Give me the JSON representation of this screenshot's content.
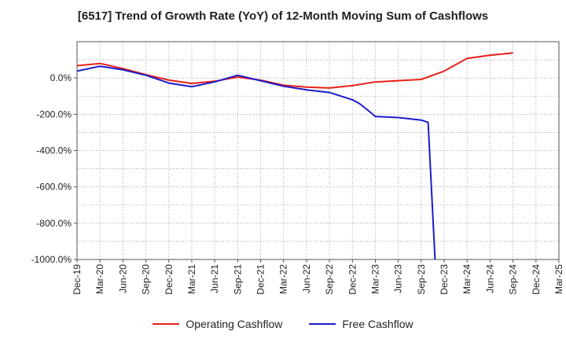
{
  "chart_data": {
    "type": "line",
    "title": "[6517]  Trend of Growth Rate (YoY) of 12-Month Moving Sum of Cashflows",
    "xlabel": "",
    "ylabel": "",
    "categories": [
      "Dec-19",
      "Mar-20",
      "Jun-20",
      "Sep-20",
      "Dec-20",
      "Mar-21",
      "Jun-21",
      "Sep-21",
      "Dec-21",
      "Mar-22",
      "Jun-22",
      "Sep-22",
      "Dec-22",
      "Mar-23",
      "Jun-23",
      "Sep-23",
      "Dec-23",
      "Mar-24",
      "Jun-24",
      "Sep-24",
      "Dec-24",
      "Mar-25"
    ],
    "yticks": [
      "-1000.0%",
      "-800.0%",
      "-600.0%",
      "-400.0%",
      "-200.0%",
      "0.0%"
    ],
    "ylim": [
      -1000,
      200
    ],
    "grid": true,
    "legend_position": "bottom",
    "series": [
      {
        "name": "Operating Cashflow",
        "color": "#e8201a",
        "points": [
          [
            0,
            68
          ],
          [
            1,
            80
          ],
          [
            2,
            52
          ],
          [
            3,
            18
          ],
          [
            4,
            -12
          ],
          [
            5,
            -30
          ],
          [
            6,
            -18
          ],
          [
            7,
            5
          ],
          [
            8,
            -12
          ],
          [
            9,
            -40
          ],
          [
            10,
            -50
          ],
          [
            11,
            -55
          ],
          [
            12,
            -42
          ],
          [
            13,
            -22
          ],
          [
            14,
            -15
          ],
          [
            15,
            -8
          ],
          [
            16,
            38
          ],
          [
            17,
            108
          ],
          [
            18,
            125
          ],
          [
            19,
            138
          ]
        ]
      },
      {
        "name": "Free Cashflow",
        "color": "#1b1bcc",
        "points": [
          [
            0,
            38
          ],
          [
            1,
            65
          ],
          [
            2,
            45
          ],
          [
            3,
            15
          ],
          [
            4,
            -28
          ],
          [
            5,
            -48
          ],
          [
            6,
            -22
          ],
          [
            7,
            15
          ],
          [
            8,
            -15
          ],
          [
            9,
            -45
          ],
          [
            10,
            -65
          ],
          [
            11,
            -80
          ],
          [
            12,
            -120
          ],
          [
            12.3,
            -140
          ],
          [
            12.6,
            -170
          ],
          [
            13,
            -212
          ],
          [
            14,
            -218
          ],
          [
            15,
            -232
          ],
          [
            15.3,
            -245
          ],
          [
            15.6,
            -1000
          ]
        ]
      }
    ]
  }
}
